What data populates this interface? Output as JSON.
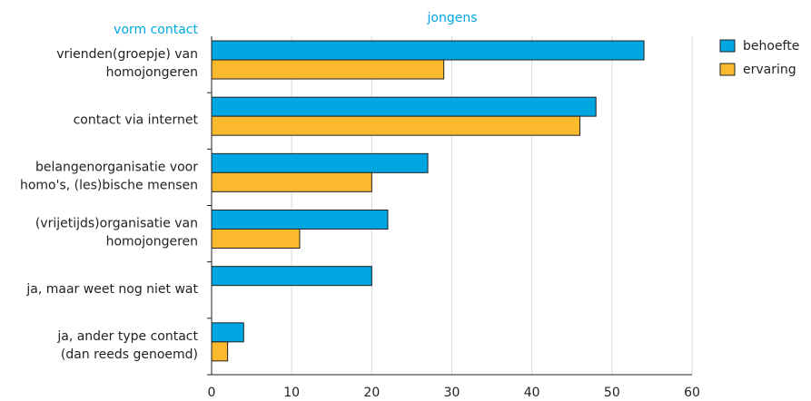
{
  "chart_data": {
    "type": "bar",
    "orientation": "horizontal",
    "title": "jongens",
    "category_axis_title": "vorm contact",
    "categories": [
      [
        "vrienden(groepje) van",
        "homojongeren"
      ],
      [
        "contact via internet"
      ],
      [
        "belangenorganisatie voor",
        "homo's, (les)bische mensen"
      ],
      [
        "(vrijetijds)organisatie van",
        "homojongeren"
      ],
      [
        "ja, maar weet nog niet wat"
      ],
      [
        "ja, ander type contact",
        "(dan reeds genoemd)"
      ]
    ],
    "series": [
      {
        "name": "behoefte",
        "color": "#00a6e2",
        "values": [
          54,
          48,
          27,
          22,
          20,
          4
        ]
      },
      {
        "name": "ervaring",
        "color": "#fbb92e",
        "values": [
          29,
          46,
          20,
          11,
          null,
          2
        ]
      }
    ],
    "xlim": [
      0,
      60
    ],
    "xticks": [
      0,
      10,
      20,
      30,
      40,
      50,
      60
    ],
    "grid": "vertical",
    "legend_position": "top-right",
    "accent_color": "#00a6e2"
  }
}
